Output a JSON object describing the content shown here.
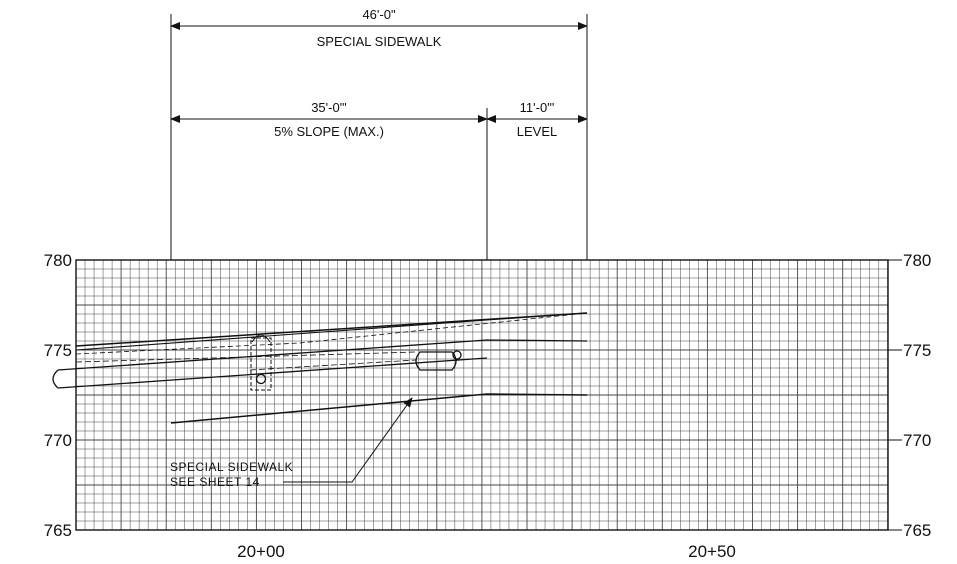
{
  "dimensions": {
    "overall": {
      "length": "46'-0\"",
      "label": "SPECIAL SIDEWALK"
    },
    "slope_segment": {
      "length": "35'-0\"'",
      "label": "5% SLOPE (MAX.)"
    },
    "level_segment": {
      "length": "11'-0\"'",
      "label": "LEVEL"
    }
  },
  "grid": {
    "elevation_labels_left": [
      "780",
      "775",
      "770",
      "765"
    ],
    "elevation_labels_right": [
      "780",
      "775",
      "770",
      "765"
    ],
    "station_labels": [
      "20+00",
      "20+50"
    ]
  },
  "callout": {
    "line1": "SPECIAL SIDEWALK",
    "line2": "SEE SHEET 14"
  }
}
